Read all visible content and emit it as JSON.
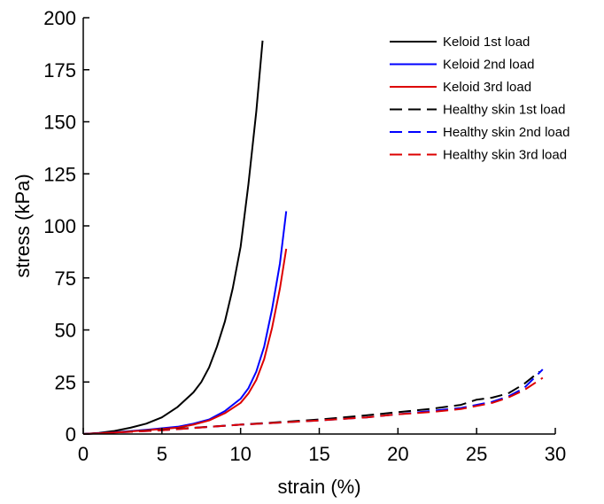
{
  "chart_data": {
    "type": "line",
    "xlabel": "strain (%)",
    "ylabel": "stress (kPa)",
    "xlim": [
      0,
      30
    ],
    "ylim": [
      0,
      200
    ],
    "xticks": [
      "0",
      "5",
      "10",
      "15",
      "20",
      "25",
      "30"
    ],
    "yticks": [
      "0",
      "25",
      "50",
      "75",
      "100",
      "125",
      "150",
      "175",
      "200"
    ],
    "grid": false,
    "legend_position": "top-right",
    "series": [
      {
        "name": "Keloid 1st load",
        "color": "#000000",
        "dash": "solid",
        "x": [
          0,
          1,
          2,
          3,
          4,
          5,
          6,
          7,
          7.5,
          8,
          8.5,
          9,
          9.5,
          10,
          10.5,
          11,
          11.4
        ],
        "y": [
          0,
          0.5,
          1.5,
          3,
          5,
          8,
          13,
          20,
          25,
          32,
          42,
          54,
          70,
          90,
          120,
          155,
          189
        ]
      },
      {
        "name": "Keloid 2nd load",
        "color": "#0000ff",
        "dash": "solid",
        "x": [
          0,
          2,
          4,
          6,
          7,
          8,
          9,
          10,
          10.5,
          11,
          11.5,
          12,
          12.5,
          12.9
        ],
        "y": [
          0,
          0.8,
          2,
          3.5,
          5,
          7,
          11,
          17,
          22,
          30,
          42,
          60,
          82,
          107
        ]
      },
      {
        "name": "Keloid 3rd load",
        "color": "#dd0000",
        "dash": "solid",
        "x": [
          0,
          2,
          4,
          6,
          7,
          8,
          9,
          10,
          10.5,
          11,
          11.5,
          12,
          12.5,
          12.9
        ],
        "y": [
          0,
          0.7,
          1.8,
          3,
          4.5,
          6.5,
          10,
          15,
          19.5,
          26,
          36,
          51,
          70,
          89
        ]
      },
      {
        "name": "Healthy skin 1st load",
        "color": "#000000",
        "dash": "dashed",
        "x": [
          0,
          5,
          10,
          15,
          18,
          20,
          22,
          24,
          25,
          26,
          27,
          28,
          29
        ],
        "y": [
          0,
          2,
          4.5,
          7,
          9,
          10.5,
          12,
          14,
          16.5,
          17.5,
          19.5,
          24,
          30
        ]
      },
      {
        "name": "Healthy skin 2nd load",
        "color": "#0000ff",
        "dash": "dashed",
        "x": [
          0,
          5,
          10,
          15,
          18,
          20,
          22,
          24,
          25,
          26,
          27,
          28,
          29.2
        ],
        "y": [
          0,
          1.8,
          4.5,
          6.5,
          8,
          9.5,
          11,
          12.5,
          14,
          15.5,
          18,
          22,
          31
        ]
      },
      {
        "name": "Healthy skin 3rd load",
        "color": "#dd0000",
        "dash": "dashed",
        "x": [
          0,
          5,
          10,
          15,
          18,
          20,
          22,
          24,
          25,
          26,
          27,
          28,
          29.2
        ],
        "y": [
          0,
          1.8,
          4.5,
          6.5,
          8,
          9.5,
          10.5,
          12,
          13.5,
          15,
          17.5,
          21,
          27
        ]
      }
    ]
  }
}
